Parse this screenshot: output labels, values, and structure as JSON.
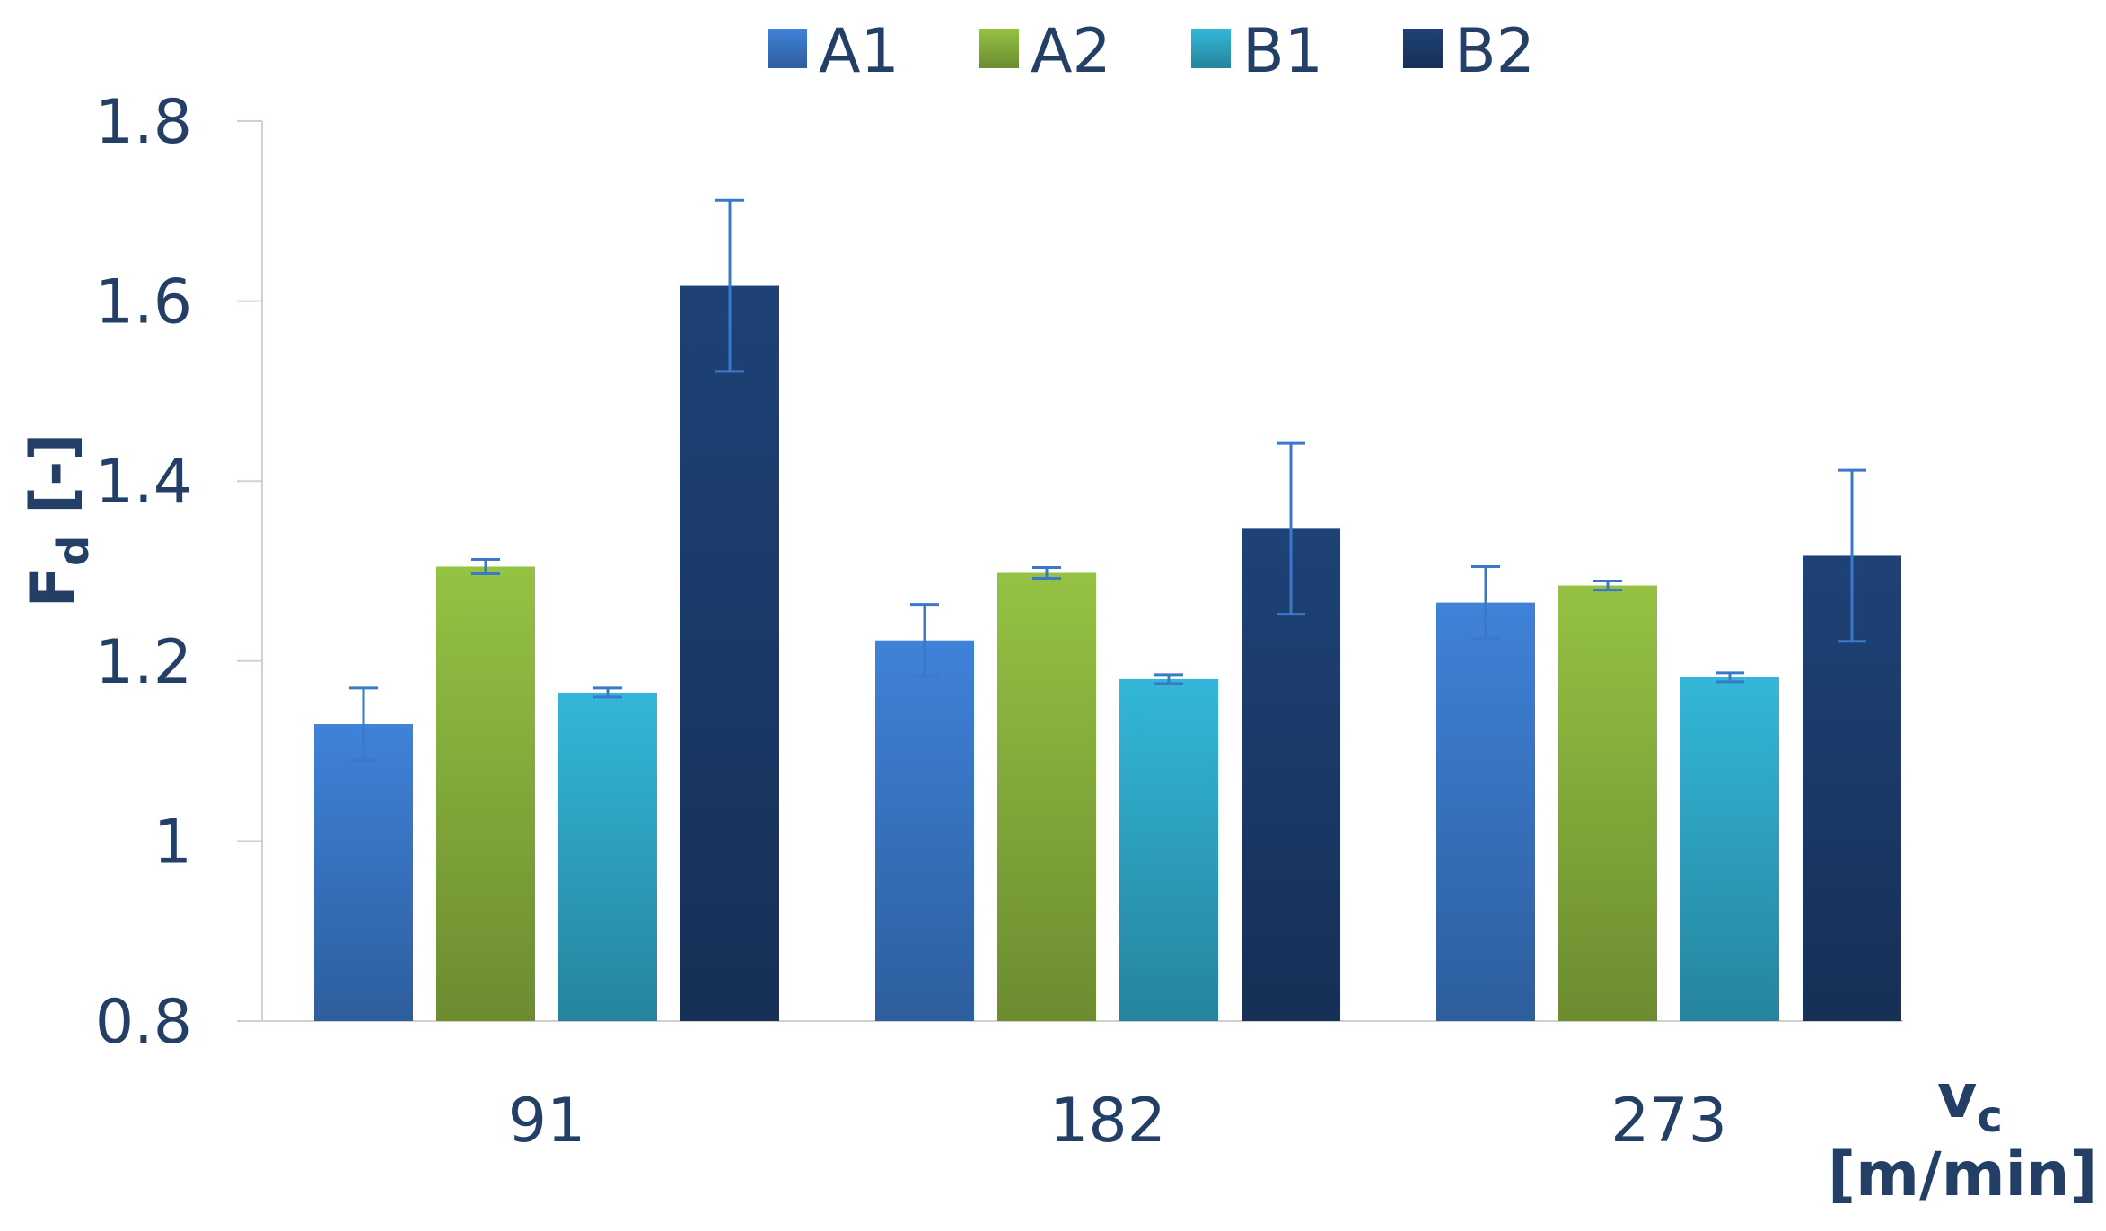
{
  "chart_data": {
    "type": "bar",
    "categories": [
      "91",
      "182",
      "273"
    ],
    "series": [
      {
        "name": "A1",
        "values": [
          1.13,
          1.223,
          1.265
        ],
        "errors": [
          0.04,
          0.04,
          0.04
        ],
        "color": "#3a78c9"
      },
      {
        "name": "A2",
        "values": [
          1.305,
          1.298,
          1.284
        ],
        "errors": [
          0.008,
          0.006,
          0.005
        ],
        "color": "#8ab43e"
      },
      {
        "name": "B1",
        "values": [
          1.165,
          1.18,
          1.182
        ],
        "errors": [
          0.005,
          0.005,
          0.005
        ],
        "color": "#2fa9c9"
      },
      {
        "name": "B2",
        "values": [
          1.617,
          1.347,
          1.317
        ],
        "errors": [
          0.095,
          0.095,
          0.095
        ],
        "color": "#1c3d6e"
      }
    ],
    "ylim": [
      0.8,
      1.8
    ],
    "yticks": [
      "0.8",
      "1",
      "1.2",
      "1.4",
      "1.6",
      "1.8"
    ],
    "ylabel": {
      "main": "F",
      "sub": "d",
      "rest": " [-]"
    },
    "xlabel": {
      "main": "v",
      "sub": "c",
      "unit": "[m/min]"
    },
    "legend_position": "top-center",
    "grid": false,
    "error_bar_color": "#3a78c9",
    "text_color": "#243f66",
    "axis_color": "#d0d0d0"
  }
}
